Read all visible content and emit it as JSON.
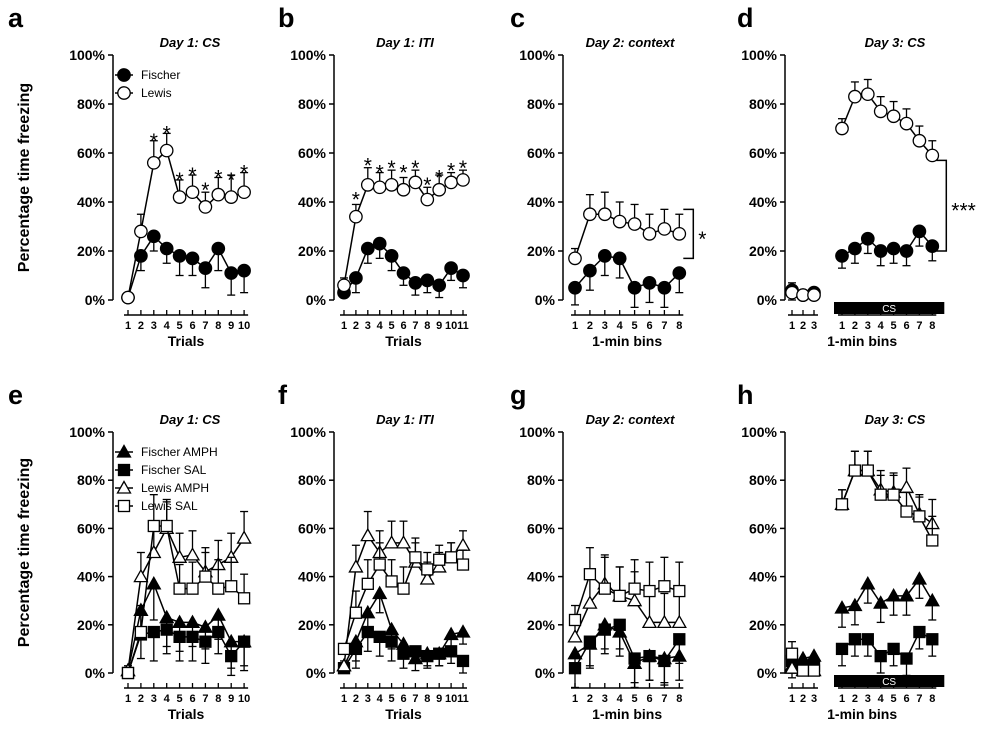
{
  "figure": {
    "ylabel": "Percentage time freezing",
    "ytick_labels": [
      "0%",
      "20%",
      "40%",
      "60%",
      "80%",
      "100%"
    ]
  },
  "chart_data": [
    {
      "panel": "a",
      "title": "Day 1: CS",
      "type": "line",
      "xlabel": "Trials",
      "x": [
        1,
        2,
        3,
        4,
        5,
        6,
        7,
        8,
        9,
        10
      ],
      "ylim": [
        0,
        100
      ],
      "legend": [
        "Fischer",
        "Lewis"
      ],
      "legend_position": "top-left",
      "series": [
        {
          "name": "Fischer",
          "marker": "circle",
          "fill": "black",
          "values": [
            1,
            18,
            26,
            21,
            18,
            17,
            13,
            21,
            11,
            12
          ],
          "errors": [
            1,
            6,
            6,
            6,
            8,
            7,
            8,
            9,
            9,
            9
          ]
        },
        {
          "name": "Lewis",
          "marker": "circle",
          "fill": "white",
          "values": [
            1,
            28,
            56,
            61,
            42,
            44,
            38,
            43,
            42,
            44
          ],
          "errors": [
            1,
            7,
            9,
            7,
            7,
            7,
            6,
            7,
            9,
            8
          ]
        }
      ],
      "annotations": [
        {
          "text": "*",
          "x": 3,
          "y": 67
        },
        {
          "text": "*",
          "x": 4,
          "y": 70
        },
        {
          "text": "*",
          "x": 5,
          "y": 51
        },
        {
          "text": "*",
          "x": 6,
          "y": 53
        },
        {
          "text": "*",
          "x": 7,
          "y": 47
        },
        {
          "text": "*",
          "x": 8,
          "y": 52
        },
        {
          "text": "*",
          "x": 9,
          "y": 51
        },
        {
          "text": "*",
          "x": 10,
          "y": 54
        }
      ]
    },
    {
      "panel": "b",
      "title": "Day 1: ITI",
      "type": "line",
      "xlabel": "Trials",
      "x": [
        1,
        2,
        3,
        4,
        5,
        6,
        7,
        8,
        9,
        10,
        11
      ],
      "ylim": [
        0,
        100
      ],
      "series": [
        {
          "name": "Fischer",
          "marker": "circle",
          "fill": "black",
          "values": [
            3,
            9,
            21,
            23,
            18,
            11,
            7,
            8,
            6,
            13,
            10
          ],
          "errors": [
            2,
            6,
            6,
            6,
            6,
            5,
            5,
            5,
            5,
            5,
            5
          ]
        },
        {
          "name": "Lewis",
          "marker": "circle",
          "fill": "white",
          "values": [
            6,
            34,
            47,
            46,
            47,
            45,
            48,
            41,
            45,
            48,
            49
          ],
          "errors": [
            3,
            5,
            7,
            6,
            6,
            5,
            5,
            5,
            6,
            4,
            4
          ]
        }
      ],
      "annotations": [
        {
          "text": "*",
          "x": 2,
          "y": 43
        },
        {
          "text": "*",
          "x": 3,
          "y": 57
        },
        {
          "text": "*",
          "x": 4,
          "y": 54
        },
        {
          "text": "*",
          "x": 5,
          "y": 56
        },
        {
          "text": "*",
          "x": 6,
          "y": 54
        },
        {
          "text": "*",
          "x": 7,
          "y": 56
        },
        {
          "text": "*",
          "x": 8,
          "y": 49
        },
        {
          "text": "*",
          "x": 9,
          "y": 52
        },
        {
          "text": "*",
          "x": 10,
          "y": 55
        },
        {
          "text": "*",
          "x": 11,
          "y": 56
        }
      ]
    },
    {
      "panel": "c",
      "title": "Day 2: context",
      "type": "line",
      "xlabel": "1-min bins",
      "x": [
        1,
        2,
        3,
        4,
        5,
        6,
        7,
        8
      ],
      "ylim": [
        0,
        100
      ],
      "series": [
        {
          "name": "Fischer",
          "marker": "circle",
          "fill": "black",
          "values": [
            5,
            12,
            18,
            17,
            5,
            7,
            5,
            11
          ],
          "errors": [
            7,
            8,
            8,
            8,
            8,
            8,
            8,
            8
          ]
        },
        {
          "name": "Lewis",
          "marker": "circle",
          "fill": "white",
          "values": [
            17,
            35,
            35,
            32,
            31,
            27,
            29,
            27
          ],
          "errors": [
            4,
            8,
            9,
            8,
            8,
            8,
            8,
            8
          ]
        }
      ],
      "bracket": {
        "y1": 17,
        "y2": 37,
        "text": "*"
      }
    },
    {
      "panel": "d",
      "title": "Day 3: CS",
      "type": "line",
      "xlabel": "1-min bins",
      "pre_x": [
        1,
        2,
        3
      ],
      "x": [
        1,
        2,
        3,
        4,
        5,
        6,
        7,
        8
      ],
      "ylim": [
        0,
        100
      ],
      "cs_bar_label": "CS",
      "series": [
        {
          "name": "Fischer",
          "marker": "circle",
          "fill": "black",
          "pre_values": [
            4,
            2,
            3
          ],
          "pre_errors": [
            4,
            2,
            2
          ],
          "values": [
            18,
            21,
            25,
            20,
            21,
            20,
            28,
            22
          ],
          "errors": [
            5,
            6,
            6,
            6,
            6,
            6,
            6,
            6
          ]
        },
        {
          "name": "Lewis",
          "marker": "circle",
          "fill": "white",
          "pre_values": [
            3,
            2,
            2
          ],
          "pre_errors": [
            4,
            2,
            2
          ],
          "values": [
            70,
            83,
            84,
            77,
            75,
            72,
            65,
            59
          ],
          "errors": [
            4,
            6,
            6,
            6,
            6,
            6,
            6,
            6
          ]
        }
      ],
      "bracket": {
        "y1": 20,
        "y2": 57,
        "text": "***"
      }
    },
    {
      "panel": "e",
      "title": "Day 1: CS",
      "type": "line",
      "xlabel": "Trials",
      "x": [
        1,
        2,
        3,
        4,
        5,
        6,
        7,
        8,
        9,
        10
      ],
      "ylim": [
        0,
        100
      ],
      "legend": [
        "Fischer AMPH",
        "Fischer SAL",
        "Lewis AMPH",
        "Lewis SAL"
      ],
      "legend_position": "top-left",
      "series": [
        {
          "name": "Fischer AMPH",
          "marker": "triangle",
          "fill": "black",
          "values": [
            1,
            26,
            37,
            23,
            21,
            21,
            19,
            24,
            13,
            13
          ],
          "errors": [
            2,
            10,
            15,
            12,
            12,
            10,
            9,
            10,
            11,
            12
          ]
        },
        {
          "name": "Fischer SAL",
          "marker": "square",
          "fill": "black",
          "values": [
            0,
            16,
            17,
            18,
            15,
            15,
            13,
            17,
            7,
            13
          ],
          "errors": [
            1,
            10,
            12,
            10,
            10,
            10,
            9,
            9,
            8,
            10
          ]
        },
        {
          "name": "Lewis AMPH",
          "marker": "triangle",
          "fill": "white",
          "values": [
            1,
            40,
            50,
            60,
            48,
            49,
            42,
            45,
            48,
            56
          ],
          "errors": [
            2,
            10,
            12,
            12,
            10,
            10,
            10,
            10,
            10,
            11
          ]
        },
        {
          "name": "Lewis SAL",
          "marker": "square",
          "fill": "white",
          "values": [
            0,
            17,
            61,
            61,
            35,
            35,
            40,
            35,
            36,
            31
          ],
          "errors": [
            1,
            11,
            13,
            10,
            10,
            11,
            10,
            12,
            12,
            10
          ]
        }
      ]
    },
    {
      "panel": "f",
      "title": "Day 1: ITI",
      "type": "line",
      "xlabel": "Trials",
      "x": [
        1,
        2,
        3,
        4,
        5,
        6,
        7,
        8,
        9,
        10,
        11
      ],
      "ylim": [
        0,
        100
      ],
      "series": [
        {
          "name": "Fischer AMPH",
          "marker": "triangle",
          "fill": "black",
          "values": [
            3,
            13,
            25,
            33,
            18,
            12,
            6,
            8,
            8,
            16,
            17
          ],
          "errors": [
            2,
            8,
            9,
            8,
            8,
            6,
            5,
            5,
            5,
            5,
            5
          ]
        },
        {
          "name": "Fischer SAL",
          "marker": "square",
          "fill": "black",
          "values": [
            2,
            10,
            17,
            15,
            13,
            8,
            9,
            7,
            8,
            9,
            5
          ],
          "errors": [
            2,
            8,
            8,
            8,
            8,
            6,
            5,
            5,
            5,
            5,
            5
          ]
        },
        {
          "name": "Lewis AMPH",
          "marker": "triangle",
          "fill": "white",
          "values": [
            3,
            44,
            57,
            50,
            54,
            54,
            46,
            39,
            44,
            48,
            53
          ],
          "errors": [
            2,
            9,
            10,
            9,
            9,
            9,
            8,
            7,
            6,
            6,
            6
          ]
        },
        {
          "name": "Lewis SAL",
          "marker": "square",
          "fill": "white",
          "values": [
            10,
            25,
            37,
            45,
            38,
            35,
            48,
            43,
            47,
            48,
            45
          ],
          "errors": [
            2,
            9,
            10,
            9,
            9,
            9,
            8,
            7,
            6,
            6,
            6
          ]
        }
      ]
    },
    {
      "panel": "g",
      "title": "Day 2: context",
      "type": "line",
      "xlabel": "1-min bins",
      "x": [
        1,
        2,
        3,
        4,
        5,
        6,
        7,
        8
      ],
      "ylim": [
        0,
        100
      ],
      "series": [
        {
          "name": "Fischer AMPH",
          "marker": "triangle",
          "fill": "black",
          "values": [
            8,
            12,
            20,
            17,
            4,
            7,
            6,
            7
          ],
          "errors": [
            8,
            10,
            10,
            10,
            10,
            10,
            10,
            10
          ]
        },
        {
          "name": "Fischer SAL",
          "marker": "square",
          "fill": "black",
          "values": [
            2,
            13,
            18,
            20,
            6,
            7,
            5,
            14
          ],
          "errors": [
            8,
            10,
            10,
            10,
            10,
            10,
            10,
            10
          ]
        },
        {
          "name": "Lewis AMPH",
          "marker": "triangle",
          "fill": "white",
          "values": [
            15,
            29,
            37,
            32,
            30,
            21,
            21,
            21
          ],
          "errors": [
            6,
            10,
            12,
            12,
            12,
            12,
            12,
            12
          ]
        },
        {
          "name": "Lewis SAL",
          "marker": "square",
          "fill": "white",
          "values": [
            22,
            41,
            35,
            32,
            35,
            34,
            36,
            34
          ],
          "errors": [
            6,
            11,
            13,
            12,
            12,
            12,
            12,
            12
          ]
        }
      ]
    },
    {
      "panel": "h",
      "title": "Day 3: CS",
      "type": "line",
      "xlabel": "1-min bins",
      "pre_x": [
        1,
        2,
        3
      ],
      "x": [
        1,
        2,
        3,
        4,
        5,
        6,
        7,
        8
      ],
      "ylim": [
        0,
        100
      ],
      "cs_bar_label": "CS",
      "series": [
        {
          "name": "Fischer AMPH",
          "marker": "triangle",
          "fill": "black",
          "pre_values": [
            3,
            6,
            7
          ],
          "pre_errors": [
            5,
            4,
            4
          ],
          "values": [
            27,
            28,
            37,
            29,
            32,
            32,
            39,
            30
          ],
          "errors": [
            8,
            8,
            8,
            8,
            8,
            8,
            8,
            8
          ]
        },
        {
          "name": "Fischer SAL",
          "marker": "square",
          "fill": "black",
          "pre_values": [
            5,
            3,
            3
          ],
          "pre_errors": [
            5,
            4,
            4
          ],
          "values": [
            10,
            14,
            14,
            7,
            10,
            6,
            17,
            14
          ],
          "errors": [
            7,
            7,
            7,
            7,
            7,
            7,
            7,
            7
          ]
        },
        {
          "name": "Lewis AMPH",
          "marker": "triangle",
          "fill": "white",
          "pre_values": [
            2,
            1,
            1
          ],
          "pre_errors": [
            5,
            3,
            4
          ],
          "values": [
            70,
            84,
            84,
            76,
            75,
            77,
            66,
            62
          ],
          "errors": [
            6,
            8,
            8,
            8,
            8,
            8,
            8,
            10
          ]
        },
        {
          "name": "Lewis SAL",
          "marker": "square",
          "fill": "white",
          "pre_values": [
            8,
            1,
            1
          ],
          "pre_errors": [
            5,
            3,
            4
          ],
          "values": [
            70,
            84,
            84,
            74,
            74,
            67,
            65,
            55
          ],
          "errors": [
            6,
            8,
            8,
            8,
            8,
            8,
            8,
            10
          ]
        }
      ]
    }
  ]
}
